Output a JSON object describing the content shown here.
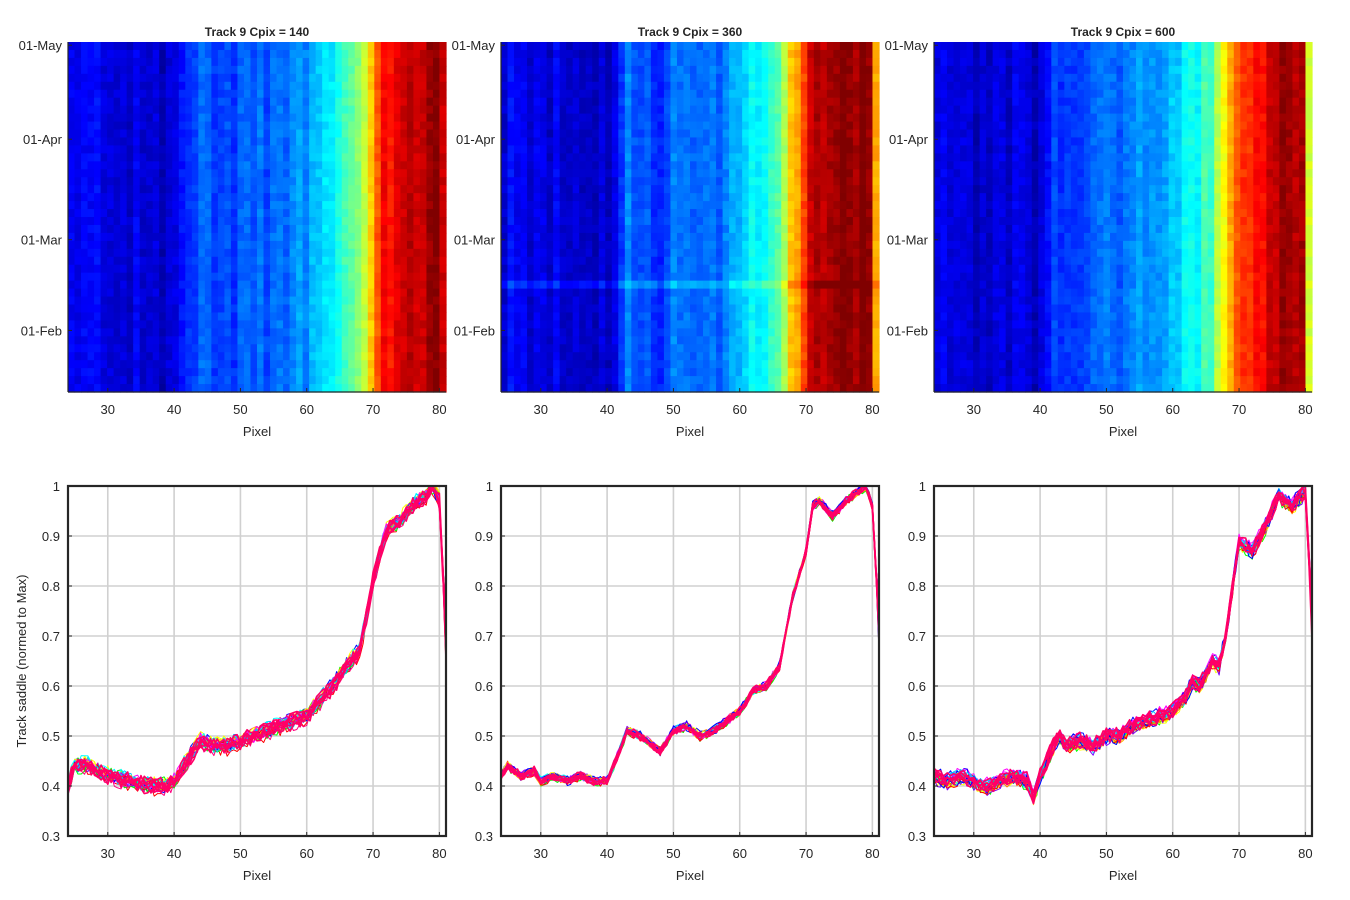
{
  "figure": {
    "background": "#ffffff"
  },
  "chart_data": [
    {
      "type": "heatmap",
      "title": "Track 9 Cpix = 140",
      "xlabel": "Pixel",
      "ylabel": "",
      "xlim": [
        24,
        81
      ],
      "x_ticks": [
        30,
        40,
        50,
        60,
        70,
        80
      ],
      "y_tick_labels": [
        "01-May",
        "01-Apr",
        "01-Mar",
        "01-Feb"
      ],
      "y_tick_days": [
        120,
        91,
        60,
        32
      ],
      "ylim_days": [
        13,
        121
      ],
      "colormap": "jet",
      "profile_knots": [
        [
          24,
          0.42
        ],
        [
          27,
          0.44
        ],
        [
          30,
          0.43
        ],
        [
          33,
          0.42
        ],
        [
          36,
          0.41
        ],
        [
          39,
          0.41
        ],
        [
          40,
          0.42
        ],
        [
          42,
          0.46
        ],
        [
          44,
          0.49
        ],
        [
          46,
          0.48
        ],
        [
          48,
          0.48
        ],
        [
          50,
          0.49
        ],
        [
          52,
          0.5
        ],
        [
          54,
          0.5
        ],
        [
          56,
          0.51
        ],
        [
          58,
          0.52
        ],
        [
          60,
          0.53
        ],
        [
          62,
          0.56
        ],
        [
          64,
          0.58
        ],
        [
          66,
          0.63
        ],
        [
          68,
          0.67
        ],
        [
          70,
          0.8
        ],
        [
          72,
          0.91
        ],
        [
          74,
          0.93
        ],
        [
          76,
          0.95
        ],
        [
          78,
          0.97
        ],
        [
          80,
          0.98
        ],
        [
          81,
          0.96
        ]
      ],
      "notes": "x = pixel, y = date; color = normalised track saddle"
    },
    {
      "type": "heatmap",
      "title": "Track 9 Cpix = 360",
      "xlabel": "Pixel",
      "ylabel": "",
      "xlim": [
        24,
        81
      ],
      "x_ticks": [
        30,
        40,
        50,
        60,
        70,
        80
      ],
      "y_tick_labels": [
        "01-May",
        "01-Apr",
        "01-Mar",
        "01-Feb"
      ],
      "y_tick_days": [
        120,
        91,
        60,
        32
      ],
      "ylim_days": [
        13,
        121
      ],
      "colormap": "jet",
      "profile_knots": [
        [
          24,
          0.42
        ],
        [
          25,
          0.44
        ],
        [
          27,
          0.42
        ],
        [
          30,
          0.41
        ],
        [
          32,
          0.42
        ],
        [
          34,
          0.41
        ],
        [
          36,
          0.42
        ],
        [
          38,
          0.41
        ],
        [
          40,
          0.41
        ],
        [
          43,
          0.51
        ],
        [
          46,
          0.49
        ],
        [
          48,
          0.47
        ],
        [
          50,
          0.51
        ],
        [
          53,
          0.5
        ],
        [
          56,
          0.51
        ],
        [
          58,
          0.52
        ],
        [
          60,
          0.56
        ],
        [
          62,
          0.59
        ],
        [
          64,
          0.61
        ],
        [
          66,
          0.66
        ],
        [
          68,
          0.78
        ],
        [
          70,
          0.87
        ],
        [
          71,
          0.96
        ],
        [
          73,
          0.97
        ],
        [
          75,
          0.98
        ],
        [
          77,
          0.99
        ],
        [
          79,
          0.99
        ],
        [
          80,
          0.97
        ],
        [
          81,
          0.8
        ]
      ],
      "notes": "x = pixel, y = date; color = normalised track saddle"
    },
    {
      "type": "heatmap",
      "title": "Track 9 Cpix = 600",
      "xlabel": "Pixel",
      "ylabel": "",
      "xlim": [
        24,
        81
      ],
      "x_ticks": [
        30,
        40,
        50,
        60,
        70,
        80
      ],
      "y_tick_labels": [
        "01-May",
        "01-Apr",
        "01-Mar",
        "01-Feb"
      ],
      "y_tick_days": [
        120,
        91,
        60,
        32
      ],
      "ylim_days": [
        13,
        121
      ],
      "colormap": "jet",
      "profile_knots": [
        [
          24,
          0.42
        ],
        [
          26,
          0.41
        ],
        [
          28,
          0.42
        ],
        [
          30,
          0.41
        ],
        [
          33,
          0.41
        ],
        [
          36,
          0.42
        ],
        [
          38,
          0.41
        ],
        [
          39,
          0.39
        ],
        [
          40,
          0.42
        ],
        [
          42,
          0.47
        ],
        [
          44,
          0.48
        ],
        [
          46,
          0.49
        ],
        [
          48,
          0.49
        ],
        [
          50,
          0.5
        ],
        [
          52,
          0.51
        ],
        [
          54,
          0.52
        ],
        [
          56,
          0.53
        ],
        [
          58,
          0.54
        ],
        [
          60,
          0.56
        ],
        [
          62,
          0.59
        ],
        [
          64,
          0.61
        ],
        [
          66,
          0.65
        ],
        [
          68,
          0.75
        ],
        [
          70,
          0.86
        ],
        [
          72,
          0.89
        ],
        [
          74,
          0.93
        ],
        [
          76,
          0.97
        ],
        [
          78,
          0.98
        ],
        [
          80,
          0.99
        ],
        [
          81,
          0.75
        ]
      ],
      "notes": "x = pixel, y = date; color = normalised track saddle"
    },
    {
      "type": "line",
      "title": "",
      "xlabel": "Pixel",
      "ylabel": "Track saddle (normed to Max)",
      "xlim": [
        24,
        81
      ],
      "ylim": [
        0.3,
        1.0
      ],
      "x_ticks": [
        30,
        40,
        50,
        60,
        70,
        80
      ],
      "y_ticks": [
        0.3,
        0.4,
        0.5,
        0.6,
        0.7,
        0.8,
        0.9,
        1
      ],
      "grid": true,
      "profile_knots": [
        [
          24,
          0.4
        ],
        [
          25,
          0.44
        ],
        [
          27,
          0.44
        ],
        [
          30,
          0.42
        ],
        [
          33,
          0.41
        ],
        [
          36,
          0.4
        ],
        [
          38,
          0.4
        ],
        [
          39,
          0.4
        ],
        [
          40,
          0.41
        ],
        [
          42,
          0.45
        ],
        [
          44,
          0.49
        ],
        [
          46,
          0.48
        ],
        [
          48,
          0.48
        ],
        [
          50,
          0.49
        ],
        [
          52,
          0.5
        ],
        [
          54,
          0.51
        ],
        [
          56,
          0.52
        ],
        [
          58,
          0.53
        ],
        [
          60,
          0.54
        ],
        [
          62,
          0.57
        ],
        [
          64,
          0.6
        ],
        [
          66,
          0.64
        ],
        [
          68,
          0.67
        ],
        [
          70,
          0.81
        ],
        [
          72,
          0.91
        ],
        [
          74,
          0.93
        ],
        [
          76,
          0.96
        ],
        [
          78,
          0.98
        ],
        [
          79,
          1.0
        ],
        [
          80,
          0.97
        ],
        [
          81,
          0.7
        ]
      ],
      "n_series": 30,
      "spread": 0.015,
      "series_colors": [
        "#ff0000",
        "#ff00ff",
        "#ff007f",
        "#00c8ff",
        "#0000ff",
        "#00ff00",
        "#ffaa00",
        "#ffff00",
        "#8000ff",
        "#00ffff"
      ],
      "top_color": "#ff0066"
    },
    {
      "type": "line",
      "title": "",
      "xlabel": "Pixel",
      "ylabel": "",
      "xlim": [
        24,
        81
      ],
      "ylim": [
        0.3,
        1.0
      ],
      "x_ticks": [
        30,
        40,
        50,
        60,
        70,
        80
      ],
      "y_ticks": [
        0.3,
        0.4,
        0.5,
        0.6,
        0.7,
        0.8,
        0.9,
        1
      ],
      "grid": true,
      "profile_knots": [
        [
          24,
          0.42
        ],
        [
          25,
          0.44
        ],
        [
          27,
          0.42
        ],
        [
          29,
          0.43
        ],
        [
          30,
          0.41
        ],
        [
          32,
          0.42
        ],
        [
          34,
          0.41
        ],
        [
          36,
          0.42
        ],
        [
          38,
          0.41
        ],
        [
          40,
          0.41
        ],
        [
          41,
          0.44
        ],
        [
          43,
          0.51
        ],
        [
          45,
          0.5
        ],
        [
          46,
          0.49
        ],
        [
          48,
          0.47
        ],
        [
          50,
          0.51
        ],
        [
          52,
          0.52
        ],
        [
          54,
          0.5
        ],
        [
          56,
          0.51
        ],
        [
          58,
          0.53
        ],
        [
          60,
          0.55
        ],
        [
          62,
          0.59
        ],
        [
          64,
          0.6
        ],
        [
          66,
          0.64
        ],
        [
          68,
          0.78
        ],
        [
          70,
          0.87
        ],
        [
          71,
          0.96
        ],
        [
          72,
          0.97
        ],
        [
          74,
          0.94
        ],
        [
          76,
          0.97
        ],
        [
          78,
          0.99
        ],
        [
          79,
          1.0
        ],
        [
          80,
          0.96
        ],
        [
          81,
          0.72
        ]
      ],
      "n_series": 30,
      "spread": 0.008,
      "series_colors": [
        "#ff0000",
        "#ff00ff",
        "#00c8ff",
        "#0000ff",
        "#00ff00",
        "#ffaa00",
        "#ffff00",
        "#8000ff",
        "#00ffff",
        "#ff7f00"
      ],
      "top_color": "#ff0066"
    },
    {
      "type": "line",
      "title": "",
      "xlabel": "Pixel",
      "ylabel": "",
      "xlim": [
        24,
        81
      ],
      "ylim": [
        0.3,
        1.0
      ],
      "x_ticks": [
        30,
        40,
        50,
        60,
        70,
        80
      ],
      "y_ticks": [
        0.3,
        0.4,
        0.5,
        0.6,
        0.7,
        0.8,
        0.9,
        1
      ],
      "grid": true,
      "profile_knots": [
        [
          24,
          0.42
        ],
        [
          26,
          0.41
        ],
        [
          28,
          0.42
        ],
        [
          30,
          0.41
        ],
        [
          32,
          0.4
        ],
        [
          34,
          0.41
        ],
        [
          36,
          0.42
        ],
        [
          38,
          0.41
        ],
        [
          39,
          0.38
        ],
        [
          40,
          0.42
        ],
        [
          42,
          0.48
        ],
        [
          43,
          0.5
        ],
        [
          44,
          0.48
        ],
        [
          46,
          0.49
        ],
        [
          48,
          0.48
        ],
        [
          50,
          0.5
        ],
        [
          52,
          0.5
        ],
        [
          54,
          0.52
        ],
        [
          56,
          0.53
        ],
        [
          58,
          0.54
        ],
        [
          60,
          0.55
        ],
        [
          62,
          0.58
        ],
        [
          63,
          0.61
        ],
        [
          64,
          0.6
        ],
        [
          66,
          0.65
        ],
        [
          67,
          0.64
        ],
        [
          68,
          0.7
        ],
        [
          70,
          0.89
        ],
        [
          72,
          0.87
        ],
        [
          74,
          0.92
        ],
        [
          76,
          0.98
        ],
        [
          78,
          0.96
        ],
        [
          80,
          0.99
        ],
        [
          81,
          0.74
        ]
      ],
      "n_series": 30,
      "spread": 0.014,
      "series_colors": [
        "#ff0000",
        "#ff00ff",
        "#00c8ff",
        "#0000ff",
        "#00ff00",
        "#ffaa00",
        "#ffff00",
        "#8000ff",
        "#00ffff",
        "#ff7f00"
      ],
      "top_color": "#ff0066"
    }
  ]
}
